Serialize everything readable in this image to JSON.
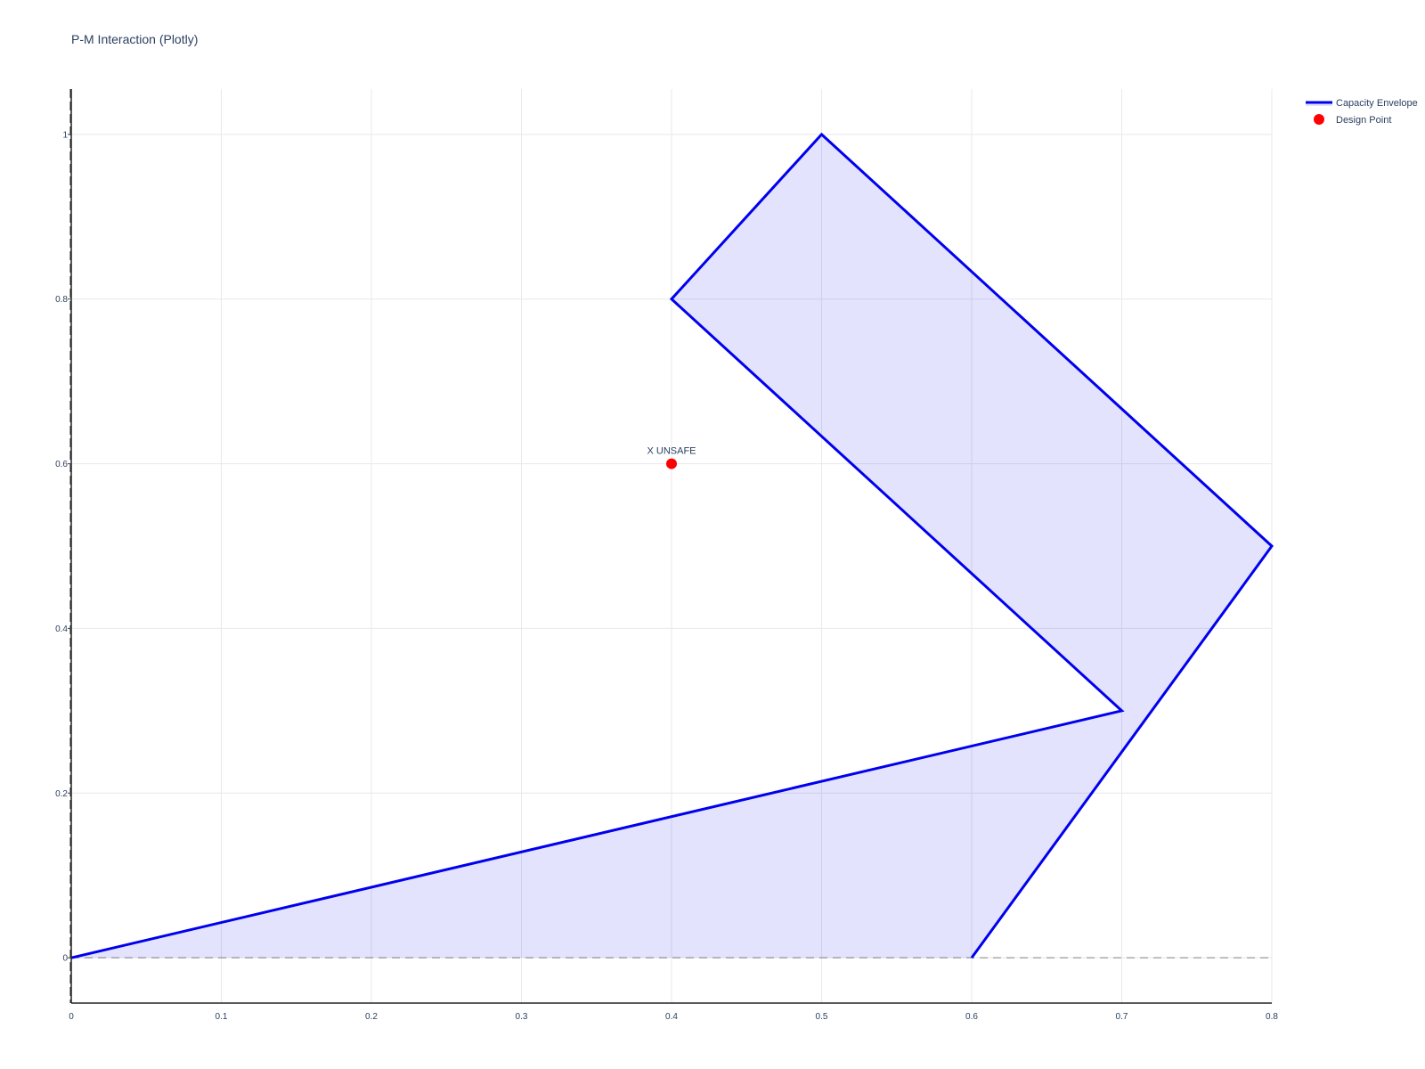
{
  "title": "P-M Interaction (Plotly)",
  "colors": {
    "envelope": "#0000ee",
    "fill": "rgba(0,0,238,0.11)",
    "point": "#ff0000",
    "grid": "#e8e8ee",
    "baseline": "#aaaaaa"
  },
  "chart_data": {
    "type": "line",
    "title": "P-M Interaction (Plotly)",
    "xlim": [
      0,
      0.8
    ],
    "ylim": [
      -0.055,
      1.055
    ],
    "xticks": [
      0,
      0.1,
      0.2,
      0.3,
      0.4,
      0.5,
      0.6,
      0.7,
      0.8
    ],
    "yticks": [
      0,
      0.2,
      0.4,
      0.6,
      0.8,
      1
    ],
    "x_tick_labels": [
      "0",
      "0.1",
      "0.2",
      "0.3",
      "0.4",
      "0.5",
      "0.6",
      "0.7",
      "0.8"
    ],
    "y_tick_labels": [
      "0",
      "0.2",
      "0.4",
      "0.6",
      "0.8",
      "1"
    ],
    "grid": true,
    "legend_position": "top-right",
    "series": [
      {
        "name": "Capacity Envelope",
        "mode": "lines",
        "fill": "toself",
        "x": [
          0,
          0.7,
          0.4,
          0.5,
          0.8,
          0.6
        ],
        "y": [
          0,
          0.3,
          0.8,
          1.0,
          0.5,
          0
        ]
      },
      {
        "name": "Design Point",
        "mode": "markers",
        "x": [
          0.4
        ],
        "y": [
          0.6
        ],
        "text": [
          "X UNSAFE"
        ]
      }
    ],
    "baseline_y": 0
  }
}
